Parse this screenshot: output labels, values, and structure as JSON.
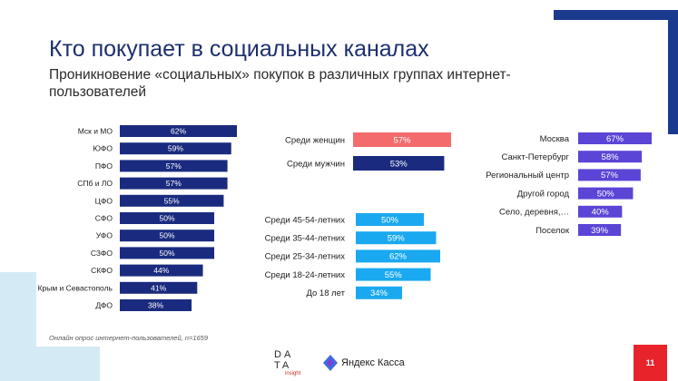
{
  "slide": {
    "title": "Кто покупает в социальных каналах",
    "subtitle": "Проникновение «социальных» покупок в различных группах интернет-пользователей",
    "source": "Онлайн опрос интернет-пользователей, n=1659",
    "page_number": "11",
    "logo_data_line1": "DA",
    "logo_data_line2": "TA",
    "logo_data_line3": "insight",
    "logo_kassa": "Яндекс Касса",
    "colors": {
      "navy": "#1a2b7f",
      "coral": "#f46b6b",
      "sky": "#1aa9f0",
      "violet": "#5b45d6",
      "red_badge": "#e8232a",
      "deco_navy": "#1a3a8f",
      "deco_light": "#d4ebf5"
    }
  },
  "chart_data": [
    {
      "type": "bar",
      "orientation": "horizontal",
      "categories": [
        "Мск и МО",
        "ЮФО",
        "ПФО",
        "СПб и ЛО",
        "ЦФО",
        "СФО",
        "УФО",
        "СЗФО",
        "СКФО",
        "Крым и Севастополь",
        "ДФО"
      ],
      "values": [
        62,
        59,
        57,
        57,
        55,
        50,
        50,
        50,
        44,
        41,
        38
      ],
      "value_labels": [
        "62%",
        "59%",
        "57%",
        "57%",
        "55%",
        "50%",
        "50%",
        "50%",
        "44%",
        "41%",
        "38%"
      ],
      "color": "#1a2b7f",
      "xlim": [
        0,
        67
      ]
    },
    {
      "type": "bar",
      "orientation": "horizontal",
      "categories": [
        "Среди женщин",
        "Среди мужчин"
      ],
      "values": [
        57,
        53
      ],
      "value_labels": [
        "57%",
        "53%"
      ],
      "colors": [
        "#f46b6b",
        "#1a2b7f"
      ],
      "xlim": [
        0,
        67
      ]
    },
    {
      "type": "bar",
      "orientation": "horizontal",
      "categories": [
        "Среди 45-54-летних",
        "Среди 35-44-летних",
        "Среди 25-34-летних",
        "Среди 18-24-летних",
        "До 18 лет"
      ],
      "values": [
        50,
        59,
        62,
        55,
        34
      ],
      "value_labels": [
        "50%",
        "59%",
        "62%",
        "55%",
        "34%"
      ],
      "color": "#1aa9f0",
      "xlim": [
        0,
        67
      ]
    },
    {
      "type": "bar",
      "orientation": "horizontal",
      "categories": [
        "Москва",
        "Санкт-Петербург",
        "Региональный центр",
        "Другой город",
        "Село, деревня,…",
        "Поселок"
      ],
      "values": [
        67,
        58,
        57,
        50,
        40,
        39
      ],
      "value_labels": [
        "67%",
        "58%",
        "57%",
        "50%",
        "40%",
        "39%"
      ],
      "color": "#5b45d6",
      "xlim": [
        0,
        67
      ]
    }
  ]
}
